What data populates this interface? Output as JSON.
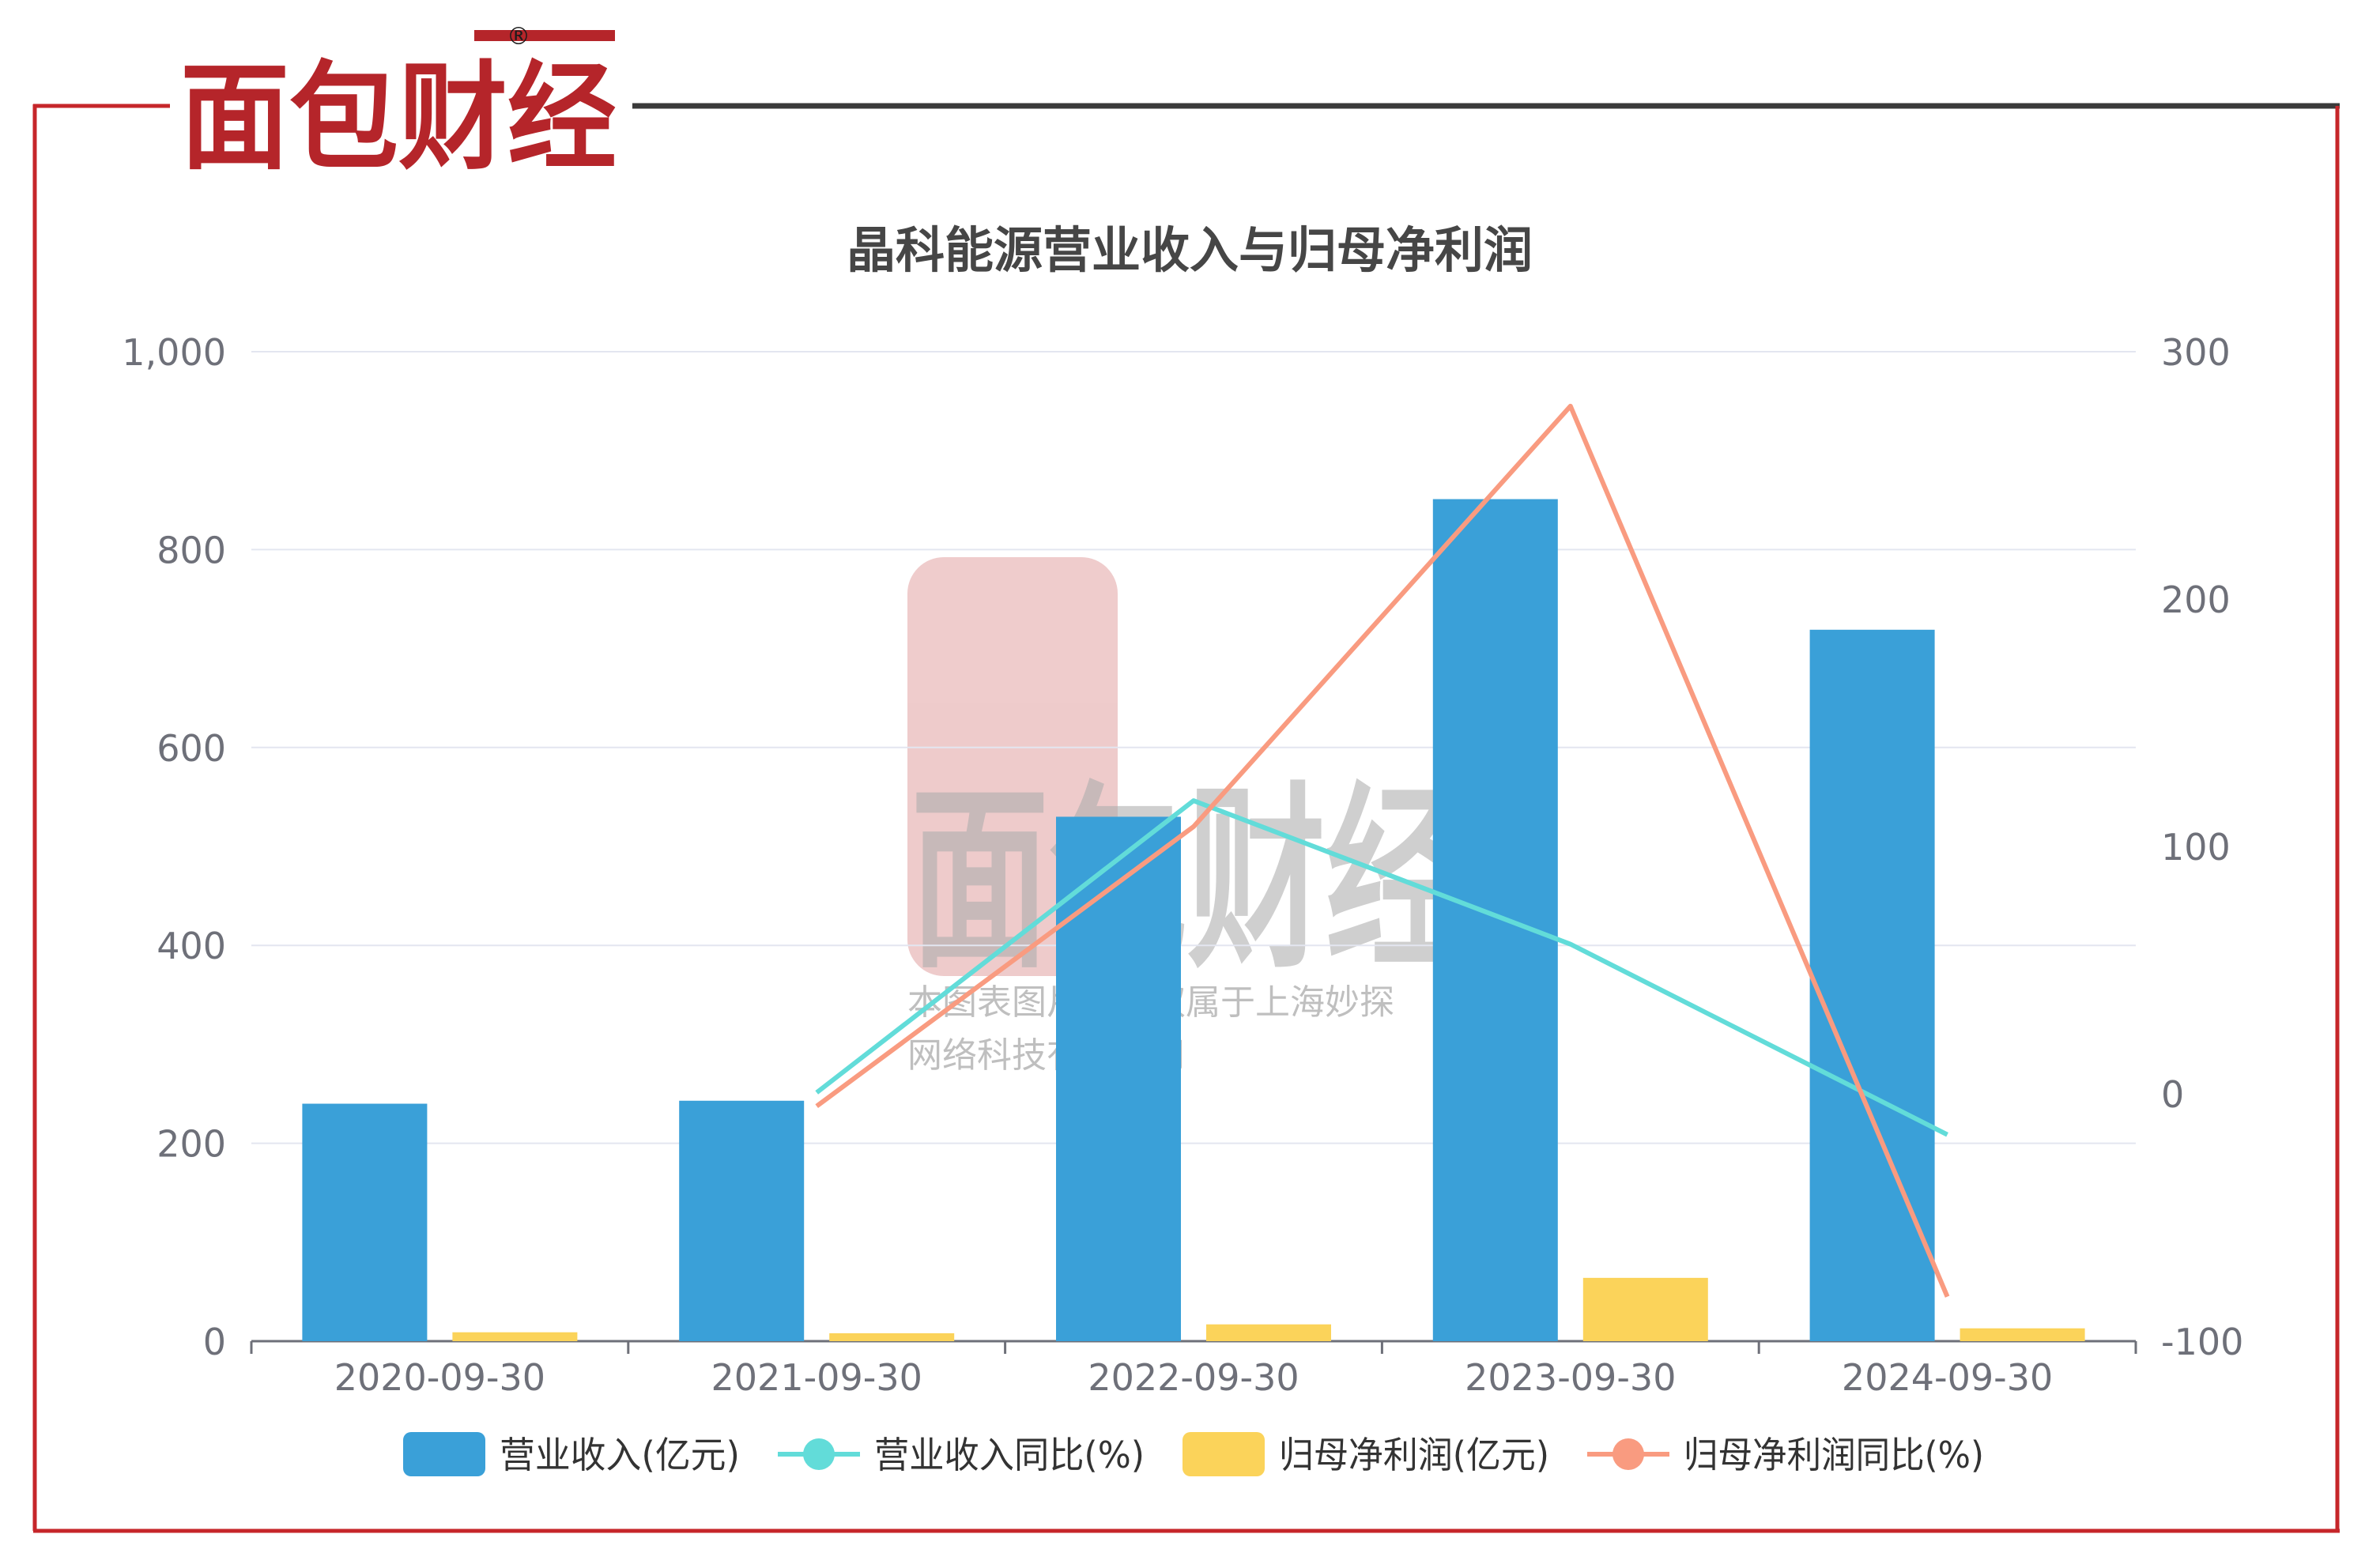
{
  "brand": {
    "logo_text": "面包财经",
    "registered_mark": "®",
    "colors": {
      "red": "#b5252a",
      "black": "#1b1b1b"
    }
  },
  "watermark": {
    "logo_text": "面包财经",
    "copyright_line1": "本图表图片著作权属于上海妙探",
    "copyright_line2": "网络科技有限公司"
  },
  "frame": {
    "border_color": "#c6262a",
    "top_rule_color": "#3a3a3a"
  },
  "chart_data": {
    "type": "bar",
    "title": "晶科能源营业收入与归母净利润",
    "categories": [
      "2020-09-30",
      "2021-09-30",
      "2022-09-30",
      "2023-09-30",
      "2024-09-30"
    ],
    "y_left": {
      "min": 0,
      "max": 1000,
      "ticks": [
        0,
        200,
        400,
        600,
        800,
        1000
      ],
      "tick_labels": [
        "0",
        "200",
        "400",
        "600",
        "800",
        "1,000"
      ]
    },
    "y_right": {
      "min": -100,
      "max": 300,
      "ticks": [
        -100,
        0,
        100,
        200,
        300
      ],
      "tick_labels": [
        "-100",
        "0",
        "100",
        "200",
        "300"
      ]
    },
    "grid": true,
    "legend_position": "bottom",
    "series": [
      {
        "name": "营业收入(亿元)",
        "kind": "bar",
        "axis": "left",
        "color": "#3aa0d8",
        "values": [
          240,
          243,
          530,
          851,
          719
        ]
      },
      {
        "name": "营业收入同比(%)",
        "kind": "line",
        "axis": "right",
        "color": "#62dcd9",
        "values": [
          null,
          0.5,
          118.5,
          60.5,
          -16.5
        ]
      },
      {
        "name": "归母净利润(亿元)",
        "kind": "bar",
        "axis": "left",
        "color": "#fbd35a",
        "values": [
          9,
          8,
          17,
          64,
          13
        ]
      },
      {
        "name": "归母净利润同比(%)",
        "kind": "line",
        "axis": "right",
        "color": "#f99b80",
        "values": [
          null,
          -5,
          108,
          278,
          -82
        ]
      }
    ]
  }
}
